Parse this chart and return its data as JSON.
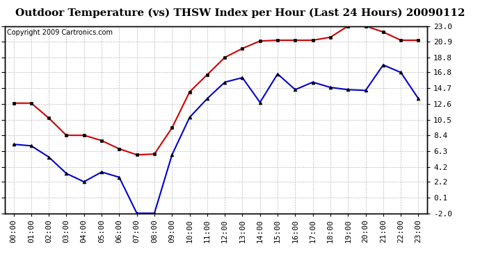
{
  "title": "Outdoor Temperature (vs) THSW Index per Hour (Last 24 Hours) 20090112",
  "copyright": "Copyright 2009 Cartronics.com",
  "hours": [
    "00:00",
    "01:00",
    "02:00",
    "03:00",
    "04:00",
    "05:00",
    "06:00",
    "07:00",
    "08:00",
    "09:00",
    "10:00",
    "11:00",
    "12:00",
    "13:00",
    "14:00",
    "15:00",
    "16:00",
    "17:00",
    "18:00",
    "19:00",
    "20:00",
    "21:00",
    "22:00",
    "23:00"
  ],
  "temp_blue": [
    7.2,
    7.0,
    5.5,
    3.3,
    2.2,
    3.5,
    2.8,
    -2.0,
    -2.0,
    5.8,
    10.8,
    13.3,
    15.5,
    16.1,
    12.8,
    16.6,
    14.5,
    15.5,
    14.8,
    14.5,
    14.4,
    17.8,
    16.8,
    13.3
  ],
  "thsw_red": [
    12.7,
    12.7,
    10.7,
    8.4,
    8.4,
    7.7,
    6.6,
    5.8,
    5.9,
    9.4,
    14.2,
    16.5,
    18.8,
    20.0,
    21.0,
    21.1,
    21.1,
    21.1,
    21.5,
    23.0,
    23.0,
    22.2,
    21.1,
    21.1
  ],
  "yticks": [
    -2.0,
    0.1,
    2.2,
    4.2,
    6.3,
    8.4,
    10.5,
    12.6,
    14.7,
    16.8,
    18.8,
    20.9,
    23.0
  ],
  "ylim": [
    -2.0,
    23.0
  ],
  "blue_color": "#0000cc",
  "red_color": "#cc0000",
  "bg_color": "#ffffff",
  "grid_color": "#bbbbbb",
  "title_fontsize": 11,
  "tick_fontsize": 8,
  "copyright_fontsize": 7
}
